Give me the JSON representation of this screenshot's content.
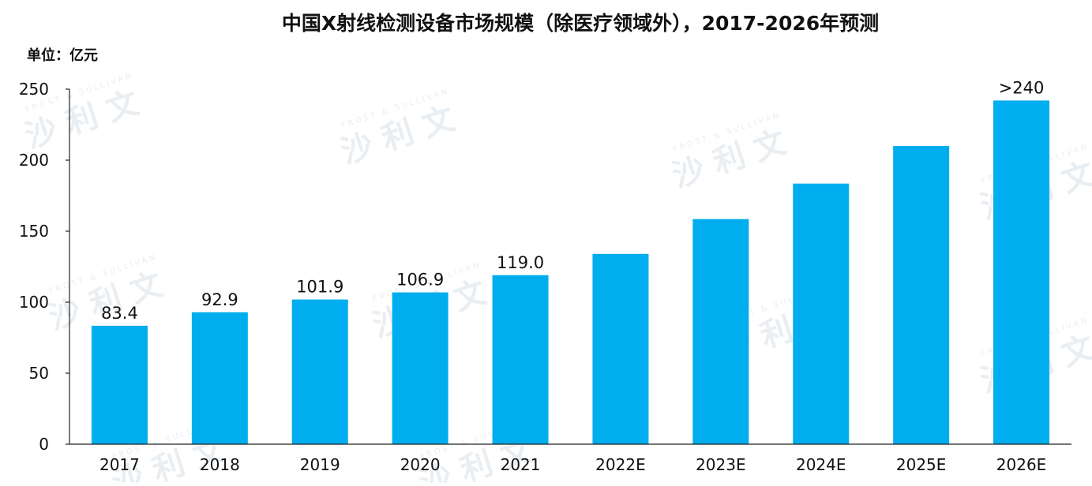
{
  "chart_data": {
    "type": "bar",
    "title": "中国X射线检测设备市场规模（除医疗领域外），2017-2026年预测",
    "unit_label": "单位：亿元",
    "categories": [
      "2017",
      "2018",
      "2019",
      "2020",
      "2021",
      "2022E",
      "2023E",
      "2024E",
      "2025E",
      "2026E"
    ],
    "values": [
      83.4,
      92.9,
      101.9,
      106.9,
      119.0,
      134,
      158.5,
      183.5,
      210,
      242
    ],
    "data_labels": [
      "83.4",
      "92.9",
      "101.9",
      "106.9",
      "119.0",
      "",
      "",
      "",
      "",
      ">240"
    ],
    "y_ticks": [
      0,
      50,
      100,
      150,
      200,
      250
    ],
    "ylim": [
      0,
      250
    ],
    "xlabel": "",
    "ylabel": "",
    "grid": false,
    "legend": "none",
    "bar_color": "#00aeef",
    "watermark": {
      "cn": "沙 利 文",
      "en": "FROST & SULLIVAN"
    }
  }
}
